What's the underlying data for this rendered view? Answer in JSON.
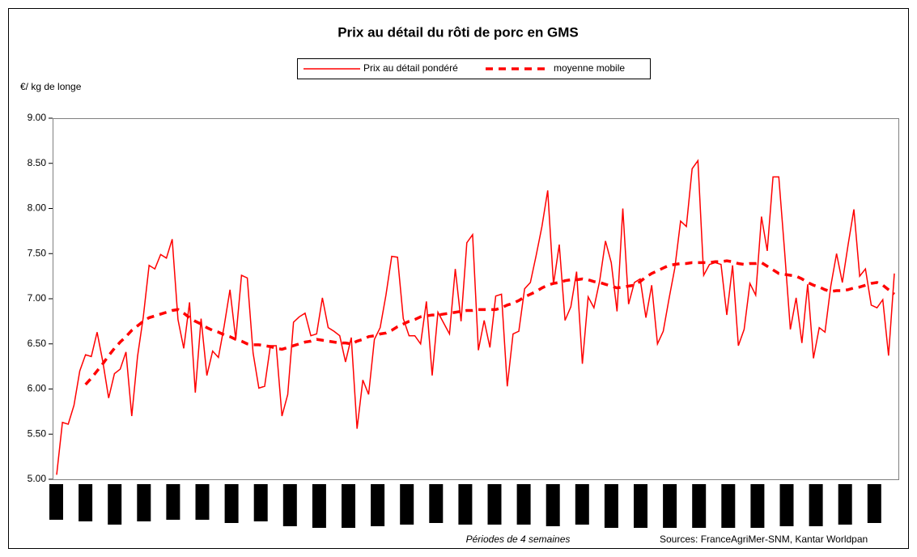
{
  "chart_data": {
    "type": "line",
    "title": "Prix  au détail du rôti de porc en GMS",
    "y_label": "€/ kg de longe",
    "x_label": "Périodes de 4 semaines",
    "source": "Sources: FranceAgriMer-SNM, Kantar Worldpan",
    "ylim": [
      5,
      9
    ],
    "yticks": [
      {
        "value": 5,
        "label": "5.00"
      },
      {
        "value": 5.5,
        "label": "5.50"
      },
      {
        "value": 6,
        "label": "6.00"
      },
      {
        "value": 6.5,
        "label": "6.50"
      },
      {
        "value": 7,
        "label": "7.00"
      },
      {
        "value": 7.5,
        "label": "7.50"
      },
      {
        "value": 8,
        "label": "8.00"
      },
      {
        "value": 8.5,
        "label": "8.50"
      },
      {
        "value": 9,
        "label": "9.00"
      }
    ],
    "grid": false,
    "legend": "top",
    "series": [
      {
        "name": "Prix au détail pondéré",
        "color": "#ff0000",
        "style": "solid",
        "values": [
          5.05,
          5.63,
          5.61,
          5.82,
          6.2,
          6.38,
          6.36,
          6.63,
          6.3,
          5.9,
          6.17,
          6.22,
          6.41,
          5.7,
          6.36,
          6.8,
          7.37,
          7.33,
          7.49,
          7.45,
          7.66,
          6.77,
          6.45,
          6.96,
          5.96,
          6.78,
          6.15,
          6.42,
          6.35,
          6.7,
          7.1,
          6.55,
          7.26,
          7.23,
          6.4,
          6.01,
          6.03,
          6.48,
          6.48,
          5.7,
          5.94,
          6.74,
          6.8,
          6.84,
          6.59,
          6.61,
          7.01,
          6.68,
          6.64,
          6.59,
          6.3,
          6.57,
          5.56,
          6.1,
          5.94,
          6.55,
          6.68,
          7.04,
          7.47,
          7.46,
          6.78,
          6.59,
          6.59,
          6.5,
          6.97,
          6.15,
          6.85,
          6.73,
          6.61,
          7.33,
          6.75,
          7.62,
          7.71,
          6.43,
          6.76,
          6.46,
          7.03,
          7.05,
          6.03,
          6.61,
          6.64,
          7.11,
          7.18,
          7.48,
          7.8,
          8.2,
          7.16,
          7.6,
          6.76,
          6.91,
          7.3,
          6.28,
          7.02,
          6.9,
          7.2,
          7.64,
          7.4,
          6.86,
          8.0,
          6.94,
          7.18,
          7.22,
          6.79,
          7.15,
          6.5,
          6.64,
          7.0,
          7.34,
          7.86,
          7.8,
          8.44,
          8.53,
          7.26,
          7.38,
          7.4,
          7.38,
          6.82,
          7.37,
          6.48,
          6.66,
          7.17,
          7.04,
          7.91,
          7.53,
          8.35,
          8.35,
          7.53,
          6.66,
          7.01,
          6.51,
          7.16,
          6.34,
          6.68,
          6.63,
          7.14,
          7.5,
          7.18,
          7.6,
          7.99,
          7.25,
          7.33,
          6.93,
          6.9,
          6.99,
          6.37,
          7.28
        ]
      },
      {
        "name": "moyenne mobile",
        "color": "#ff0000",
        "style": "dashed",
        "values": [
          null,
          null,
          null,
          null,
          null,
          6.05,
          6.12,
          6.2,
          6.28,
          6.37,
          6.45,
          6.52,
          6.58,
          6.65,
          6.7,
          6.75,
          6.79,
          6.81,
          6.83,
          6.85,
          6.87,
          6.88,
          6.84,
          6.79,
          6.75,
          6.72,
          6.68,
          6.65,
          6.63,
          6.6,
          6.58,
          6.55,
          6.53,
          6.5,
          6.49,
          6.49,
          6.48,
          6.47,
          6.45,
          6.44,
          6.46,
          6.48,
          6.5,
          6.52,
          6.53,
          6.55,
          6.54,
          6.53,
          6.52,
          6.51,
          6.51,
          6.5,
          6.53,
          6.55,
          6.58,
          6.59,
          6.61,
          6.62,
          6.65,
          6.69,
          6.72,
          6.75,
          6.77,
          6.8,
          6.81,
          6.82,
          6.82,
          6.83,
          6.84,
          6.85,
          6.86,
          6.87,
          6.87,
          6.88,
          6.88,
          6.88,
          6.88,
          6.9,
          6.93,
          6.95,
          6.98,
          7.02,
          7.05,
          7.08,
          7.12,
          7.15,
          7.17,
          7.18,
          7.2,
          7.21,
          7.21,
          7.22,
          7.21,
          7.19,
          7.18,
          7.16,
          7.14,
          7.12,
          7.13,
          7.14,
          7.15,
          7.19,
          7.24,
          7.28,
          7.31,
          7.34,
          7.37,
          7.38,
          7.39,
          7.39,
          7.4,
          7.4,
          7.4,
          7.4,
          7.41,
          7.41,
          7.42,
          7.41,
          7.39,
          7.38,
          7.39,
          7.39,
          7.4,
          7.36,
          7.32,
          7.28,
          7.27,
          7.26,
          7.25,
          7.22,
          7.18,
          7.15,
          7.13,
          7.1,
          7.08,
          7.09,
          7.09,
          7.1,
          7.12,
          7.13,
          7.15,
          7.17,
          7.18,
          7.15,
          7.1,
          7.05
        ]
      }
    ]
  }
}
